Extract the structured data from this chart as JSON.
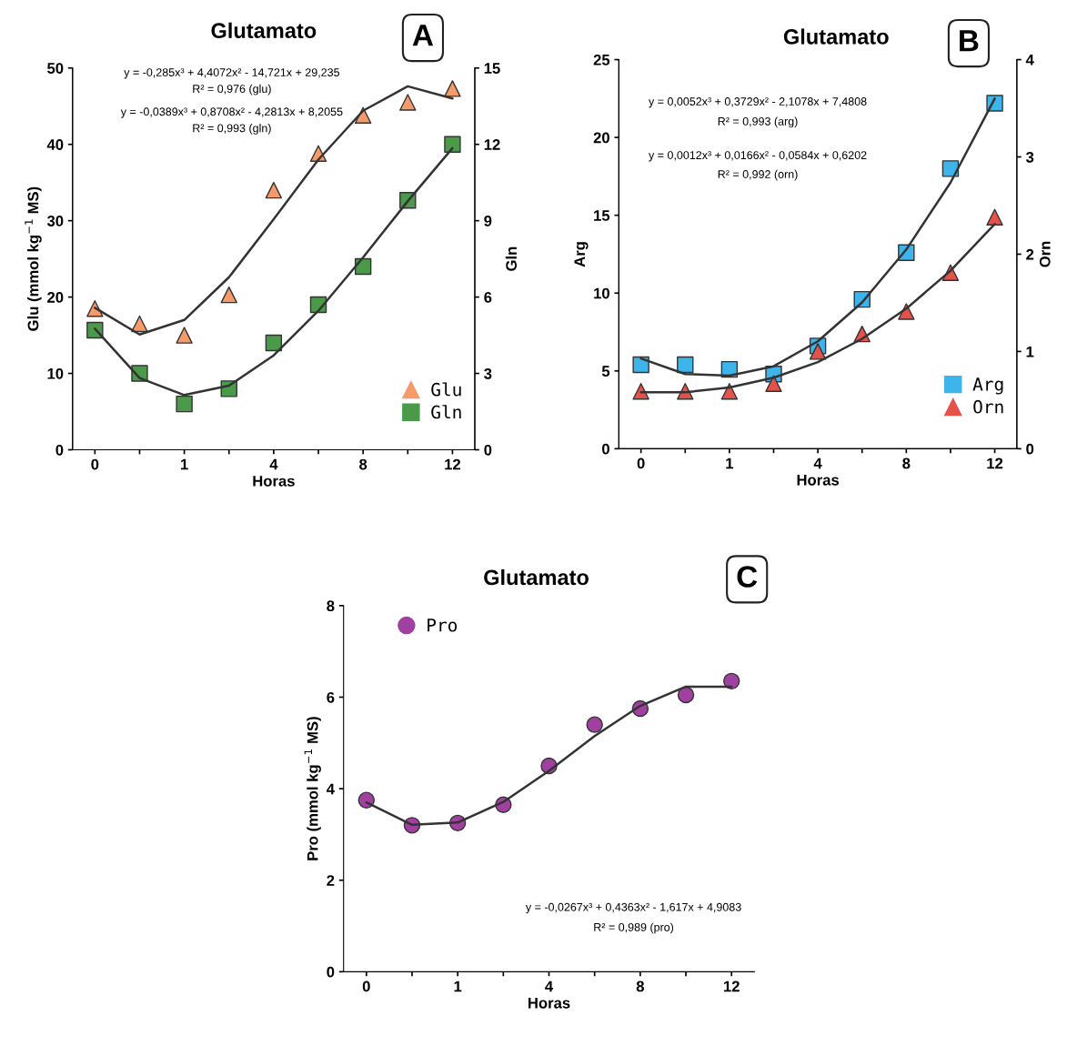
{
  "chart_data": [
    {
      "type": "scatter",
      "title": "Glutamato",
      "xlabel": "Horas",
      "ylabel": "Glu (mmol kg$^{−1}$ MS)",
      "y2label": "Gln",
      "categories": [
        "0",
        null,
        "1",
        null,
        "4",
        null,
        "8",
        null,
        "12"
      ],
      "ylim": [
        0,
        50
      ],
      "yticks": [
        0,
        10,
        20,
        30,
        40,
        50
      ],
      "y2lim": [
        0,
        15
      ],
      "y2ticks": [
        0,
        3,
        6,
        9,
        12,
        15
      ],
      "legend": "bottom right",
      "annotations": [
        "A",
        "y = -0,285x³ + 4,4072x² - 14,721x + 29,235",
        "R² = 0,976 (glu)",
        "y = -0,0389x³ + 0,8708x² - 4,2813x + 8,2055",
        "R² = 0,993 (gln)"
      ],
      "series": [
        {
          "name": "Glu",
          "marker": "triangle",
          "color": "#f79a6a",
          "values": [
            18.5,
            16.5,
            15.0,
            20.3,
            34.0,
            38.8,
            43.8,
            45.5,
            47.3
          ]
        },
        {
          "name": "Gln",
          "marker": "square",
          "color": "#4a9a4a",
          "axis": "y2",
          "values": [
            4.7,
            3.0,
            1.8,
            2.4,
            4.2,
            5.7,
            7.2,
            9.8,
            12.0
          ]
        },
        {
          "type": "line",
          "color": "#333333",
          "marker": "none",
          "values": [
            18.6,
            15.1,
            17.0,
            22.6,
            30.2,
            38.0,
            44.4,
            47.6,
            46.0
          ]
        },
        {
          "type": "line",
          "color": "#333333",
          "marker": "none",
          "axis": "y2",
          "values": [
            4.76,
            2.82,
            2.15,
            2.52,
            3.71,
            5.46,
            7.56,
            9.77,
            11.85
          ]
        }
      ]
    },
    {
      "type": "scatter",
      "title": "Glutamato",
      "xlabel": "Horas",
      "ylabel": "Arg",
      "y2label": "Orn",
      "categories": [
        "0",
        null,
        "1",
        null,
        "4",
        null,
        "8",
        null,
        "12"
      ],
      "ylim": [
        0,
        25
      ],
      "yticks": [
        0,
        5,
        10,
        15,
        20,
        25
      ],
      "y2lim": [
        0,
        4
      ],
      "y2ticks": [
        0,
        1,
        2,
        3,
        4
      ],
      "legend": "bottom right",
      "annotations": [
        "B",
        "y = 0,0052x³ + 0,3729x² - 2,1078x + 7,4808",
        "R² = 0,993 (arg)",
        "y = 0,0012x³ + 0,0166x² - 0,0584x + 0,6202",
        "R² = 0,992 (orn)"
      ],
      "series": [
        {
          "name": "Arg",
          "marker": "square",
          "color": "#3db4ea",
          "values": [
            5.4,
            5.4,
            5.1,
            4.8,
            6.6,
            9.6,
            12.6,
            18.0,
            22.2
          ]
        },
        {
          "name": "Orn",
          "marker": "triangle",
          "color": "#e5524a",
          "axis": "y2",
          "values": [
            0.59,
            0.59,
            0.59,
            0.67,
            1.0,
            1.18,
            1.41,
            1.81,
            2.38
          ]
        },
        {
          "type": "line",
          "color": "#333333",
          "marker": "none",
          "values": [
            5.8,
            4.8,
            4.7,
            5.3,
            6.9,
            9.4,
            12.8,
            17.1,
            22.5
          ]
        },
        {
          "type": "line",
          "color": "#333333",
          "marker": "none",
          "axis": "y2",
          "values": [
            0.58,
            0.58,
            0.63,
            0.73,
            0.89,
            1.13,
            1.44,
            1.83,
            2.31
          ]
        }
      ]
    },
    {
      "type": "scatter",
      "title": "Glutamato",
      "xlabel": "Horas",
      "ylabel": "Pro (mmol kg$^{−1}$ MS)",
      "categories": [
        "0",
        null,
        "1",
        null,
        "4",
        null,
        "8",
        null,
        "12"
      ],
      "ylim": [
        0,
        8
      ],
      "yticks": [
        0,
        2,
        4,
        6,
        8
      ],
      "legend": "top left",
      "annotations": [
        "C",
        "y = -0,0267x³ + 0,4363x² - 1,617x + 4,9083",
        "R² = 0,989 (pro)"
      ],
      "series": [
        {
          "name": "Pro",
          "marker": "circle",
          "color": "#a040a0",
          "values": [
            3.75,
            3.2,
            3.25,
            3.65,
            4.5,
            5.4,
            5.75,
            6.05,
            6.35
          ]
        },
        {
          "type": "line",
          "color": "#333333",
          "marker": "none",
          "values": [
            3.7,
            3.21,
            3.26,
            3.71,
            4.39,
            5.15,
            5.81,
            6.23,
            6.23
          ]
        }
      ]
    }
  ]
}
